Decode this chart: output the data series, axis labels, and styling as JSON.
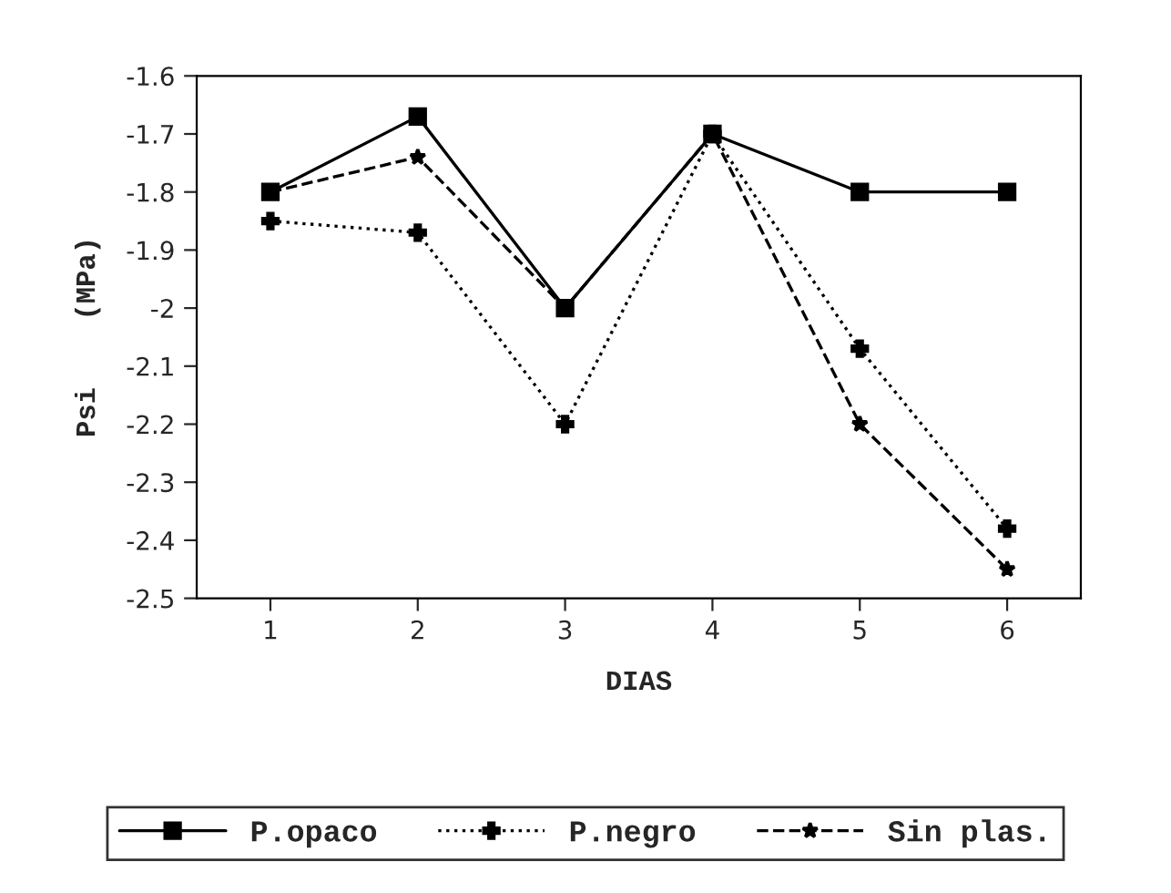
{
  "chart_data": {
    "type": "line",
    "xlabel": "DIAS",
    "ylabel": "Psi    (MPa)",
    "x": [
      1,
      2,
      3,
      4,
      5,
      6
    ],
    "series": [
      {
        "name": "P.opaco",
        "color": "#000000",
        "marker": "square",
        "line_style": "solid",
        "values": [
          -1.8,
          -1.67,
          -2.0,
          -1.7,
          -1.8,
          -1.8
        ]
      },
      {
        "name": "P.negro",
        "color": "#000000",
        "marker": "cross",
        "line_style": "dotted",
        "values": [
          -1.85,
          -1.87,
          -2.2,
          -1.7,
          -2.07,
          -2.38
        ]
      },
      {
        "name": "Sin plas.",
        "color": "#000000",
        "marker": "star",
        "line_style": "dashed",
        "values": [
          -1.8,
          -1.74,
          -2.0,
          -1.7,
          -2.2,
          -2.45
        ]
      }
    ],
    "xlim": [
      0.5,
      6.5
    ],
    "xticks": [
      1,
      2,
      3,
      4,
      5,
      6
    ],
    "ylim": [
      -2.5,
      -1.6
    ],
    "yticks": [
      -2.5,
      -2.4,
      -2.3,
      -2.2,
      -2.1,
      -2,
      -1.9,
      -1.8,
      -1.7,
      -1.6
    ],
    "grid": false,
    "legend": "bottom"
  }
}
